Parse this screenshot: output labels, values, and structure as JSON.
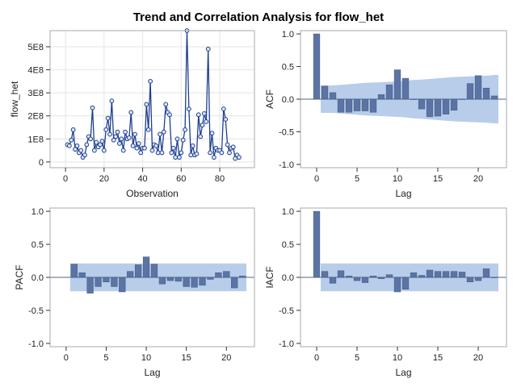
{
  "title": "Trend and Correlation Analysis for flow_het",
  "colors": {
    "line": "#1f3f8f",
    "marker_fill": "#dbe8f6",
    "bar": "#5b74a3",
    "band": "#b8cde9",
    "frame": "#a8a8a8",
    "grid": "#e4e4e4"
  },
  "chart_data": [
    {
      "type": "line",
      "id": "series",
      "xlabel": "Observation",
      "ylabel": "flow_het",
      "xlim": [
        -8,
        98
      ],
      "ylim": [
        -25000000,
        570000000
      ],
      "xticks": [
        0,
        20,
        40,
        60,
        80
      ],
      "xtick_labels": [
        "0",
        "20",
        "40",
        "60",
        "80"
      ],
      "yticks": [
        0,
        100000000,
        200000000,
        300000000,
        400000000,
        500000000
      ],
      "ytick_labels": [
        "0",
        "1E8",
        "2E8",
        "3E8",
        "4E8",
        "5E8"
      ],
      "grid": true,
      "x": [
        1,
        2,
        3,
        4,
        5,
        6,
        7,
        8,
        9,
        10,
        11,
        12,
        13,
        14,
        15,
        16,
        17,
        18,
        19,
        20,
        21,
        22,
        23,
        24,
        25,
        26,
        27,
        28,
        29,
        30,
        31,
        32,
        33,
        34,
        35,
        36,
        37,
        38,
        39,
        40,
        41,
        42,
        43,
        44,
        45,
        46,
        47,
        48,
        49,
        50,
        51,
        52,
        53,
        54,
        55,
        56,
        57,
        58,
        59,
        60,
        61,
        62,
        63,
        64,
        65,
        66,
        67,
        68,
        69,
        70,
        71,
        72,
        73,
        74,
        75,
        76,
        77,
        78,
        79,
        80,
        81,
        82,
        83,
        84,
        85,
        86,
        87,
        88,
        89,
        90
      ],
      "y": [
        75000000,
        70000000,
        95000000,
        140000000,
        55000000,
        70000000,
        40000000,
        50000000,
        20000000,
        30000000,
        75000000,
        110000000,
        100000000,
        235000000,
        50000000,
        85000000,
        65000000,
        75000000,
        90000000,
        50000000,
        140000000,
        190000000,
        120000000,
        265000000,
        95000000,
        110000000,
        130000000,
        80000000,
        100000000,
        50000000,
        130000000,
        100000000,
        105000000,
        215000000,
        70000000,
        120000000,
        60000000,
        80000000,
        40000000,
        60000000,
        60000000,
        250000000,
        140000000,
        350000000,
        50000000,
        75000000,
        70000000,
        40000000,
        120000000,
        40000000,
        130000000,
        250000000,
        215000000,
        205000000,
        40000000,
        60000000,
        20000000,
        100000000,
        20000000,
        40000000,
        95000000,
        140000000,
        570000000,
        230000000,
        30000000,
        70000000,
        30000000,
        35000000,
        205000000,
        110000000,
        160000000,
        210000000,
        175000000,
        490000000,
        40000000,
        125000000,
        20000000,
        60000000,
        50000000,
        50000000,
        40000000,
        230000000,
        185000000,
        75000000,
        40000000,
        60000000,
        65000000,
        15000000,
        30000000,
        20000000
      ]
    },
    {
      "type": "bar",
      "id": "acf",
      "xlabel": "Lag",
      "ylabel": "ACF",
      "xlim": [
        -2,
        23.5
      ],
      "ylim": [
        -1.05,
        1.05
      ],
      "xticks": [
        0,
        5,
        10,
        15,
        20
      ],
      "xtick_labels": [
        "0",
        "5",
        "10",
        "15",
        "20"
      ],
      "yticks": [
        -1,
        -0.5,
        0,
        0.5,
        1
      ],
      "ytick_labels": [
        "-1.0",
        "-0.5",
        "0.0",
        "0.5",
        "1.0"
      ],
      "lags": [
        0,
        1,
        2,
        3,
        4,
        5,
        6,
        7,
        8,
        9,
        10,
        11,
        12,
        13,
        14,
        15,
        16,
        17,
        18,
        19,
        20,
        21,
        22
      ],
      "values": [
        1.0,
        0.2,
        0.1,
        -0.2,
        -0.2,
        -0.18,
        -0.18,
        -0.2,
        0.07,
        0.22,
        0.45,
        0.32,
        0.0,
        -0.15,
        -0.27,
        -0.26,
        -0.23,
        -0.17,
        0.0,
        0.24,
        0.36,
        0.17,
        0.05
      ],
      "band_upper": [
        null,
        0.21,
        0.21,
        0.22,
        0.23,
        0.24,
        0.25,
        0.255,
        0.26,
        0.265,
        0.27,
        0.28,
        0.295,
        0.3,
        0.31,
        0.32,
        0.33,
        0.34,
        0.345,
        0.35,
        0.355,
        0.36,
        0.37
      ],
      "band_lower": [
        null,
        -0.21,
        -0.21,
        -0.22,
        -0.23,
        -0.24,
        -0.25,
        -0.255,
        -0.26,
        -0.265,
        -0.27,
        -0.28,
        -0.295,
        -0.3,
        -0.31,
        -0.32,
        -0.33,
        -0.34,
        -0.345,
        -0.35,
        -0.355,
        -0.36,
        -0.37
      ]
    },
    {
      "type": "bar",
      "id": "pacf",
      "xlabel": "Lag",
      "ylabel": "PACF",
      "xlim": [
        -2,
        23.5
      ],
      "ylim": [
        -1.05,
        1.05
      ],
      "xticks": [
        0,
        5,
        10,
        15,
        20
      ],
      "xtick_labels": [
        "0",
        "5",
        "10",
        "15",
        "20"
      ],
      "yticks": [
        -1,
        -0.5,
        0,
        0.5,
        1
      ],
      "ytick_labels": [
        "-1.0",
        "-0.5",
        "0.0",
        "0.5",
        "1.0"
      ],
      "lags": [
        1,
        2,
        3,
        4,
        5,
        6,
        7,
        8,
        9,
        10,
        11,
        12,
        13,
        14,
        15,
        16,
        17,
        18,
        19,
        20,
        21,
        22
      ],
      "values": [
        0.2,
        0.07,
        -0.24,
        -0.14,
        -0.07,
        -0.14,
        -0.22,
        0.09,
        0.19,
        0.31,
        0.2,
        -0.1,
        -0.05,
        -0.06,
        -0.14,
        -0.15,
        -0.12,
        -0.03,
        0.07,
        0.09,
        -0.16,
        0.02
      ],
      "band_upper": [
        0.21,
        0.21,
        0.21,
        0.21,
        0.21,
        0.21,
        0.21,
        0.21,
        0.21,
        0.21,
        0.21,
        0.21,
        0.21,
        0.21,
        0.21,
        0.21,
        0.21,
        0.21,
        0.21,
        0.21,
        0.21,
        0.21
      ],
      "band_lower": [
        -0.21,
        -0.21,
        -0.21,
        -0.21,
        -0.21,
        -0.21,
        -0.21,
        -0.21,
        -0.21,
        -0.21,
        -0.21,
        -0.21,
        -0.21,
        -0.21,
        -0.21,
        -0.21,
        -0.21,
        -0.21,
        -0.21,
        -0.21,
        -0.21,
        -0.21
      ]
    },
    {
      "type": "bar",
      "id": "iacf",
      "xlabel": "Lag",
      "ylabel": "IACF",
      "xlim": [
        -2,
        23.5
      ],
      "ylim": [
        -1.05,
        1.05
      ],
      "xticks": [
        0,
        5,
        10,
        15,
        20
      ],
      "xtick_labels": [
        "0",
        "5",
        "10",
        "15",
        "20"
      ],
      "yticks": [
        -1,
        -0.5,
        0,
        0.5,
        1
      ],
      "ytick_labels": [
        "-1.0",
        "-0.5",
        "0.0",
        "0.5",
        "1.0"
      ],
      "lags": [
        0,
        1,
        2,
        3,
        4,
        5,
        6,
        7,
        8,
        9,
        10,
        11,
        12,
        13,
        14,
        15,
        16,
        17,
        18,
        19,
        20,
        21,
        22
      ],
      "values": [
        1.0,
        0.09,
        -0.09,
        0.1,
        0.02,
        -0.05,
        -0.08,
        0.02,
        -0.02,
        0.04,
        -0.22,
        -0.18,
        0.07,
        0.03,
        0.11,
        0.09,
        0.09,
        0.09,
        0.08,
        -0.07,
        -0.05,
        0.13,
        0.0
      ],
      "band_upper": [
        null,
        0.21,
        0.21,
        0.21,
        0.21,
        0.21,
        0.21,
        0.21,
        0.21,
        0.21,
        0.21,
        0.21,
        0.21,
        0.21,
        0.21,
        0.21,
        0.21,
        0.21,
        0.21,
        0.21,
        0.21,
        0.21,
        0.21
      ],
      "band_lower": [
        null,
        -0.21,
        -0.21,
        -0.21,
        -0.21,
        -0.21,
        -0.21,
        -0.21,
        -0.21,
        -0.21,
        -0.21,
        -0.21,
        -0.21,
        -0.21,
        -0.21,
        -0.21,
        -0.21,
        -0.21,
        -0.21,
        -0.21,
        -0.21,
        -0.21,
        -0.21
      ]
    }
  ]
}
